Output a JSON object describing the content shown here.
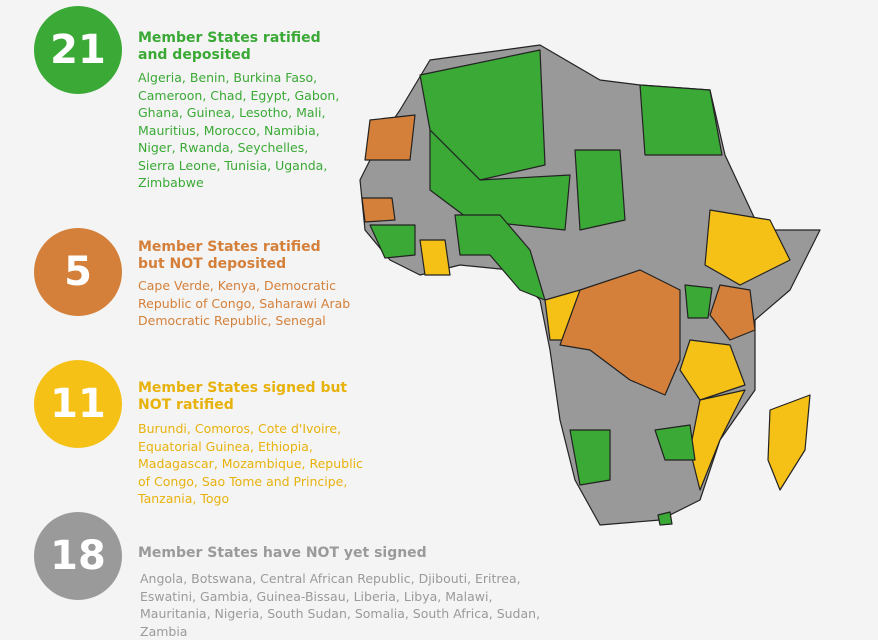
{
  "groups": [
    {
      "count": 21,
      "heading": "Member States ratified and deposited",
      "countries": "Algeria, Benin, Burkina Faso, Cameroon, Chad, Egypt, Gabon, Ghana, Guinea, Lesotho, Mali, Mauritius, Morocco, Namibia, Niger, Rwanda, Seychelles, Sierra Leone, Tunisia, Uganda, Zimbabwe"
    },
    {
      "count": 5,
      "heading": "Member States ratified but NOT deposited",
      "countries": "Cape Verde, Kenya, Democratic Republic of Congo, Saharawi Arab Democratic Republic, Senegal"
    },
    {
      "count": 11,
      "heading": "Member States signed but NOT ratified",
      "countries": "Burundi, Comoros, Cote d'Ivoire, Equatorial Guinea, Ethiopia, Madagascar, Mozambique, Republic of Congo, Sao Tome and Principe, Tanzania, Togo"
    },
    {
      "count": 18,
      "heading": "Member States have NOT yet signed",
      "countries": "Angola, Botswana, Central African Republic, Djibouti, Eritrea, Eswatini, Gambia, Guinea-Bissau, Liberia, Libya, Malawi, Mauritania, Nigeria, South Sudan, Somalia, South Africa, Sudan, Zambia"
    }
  ]
}
